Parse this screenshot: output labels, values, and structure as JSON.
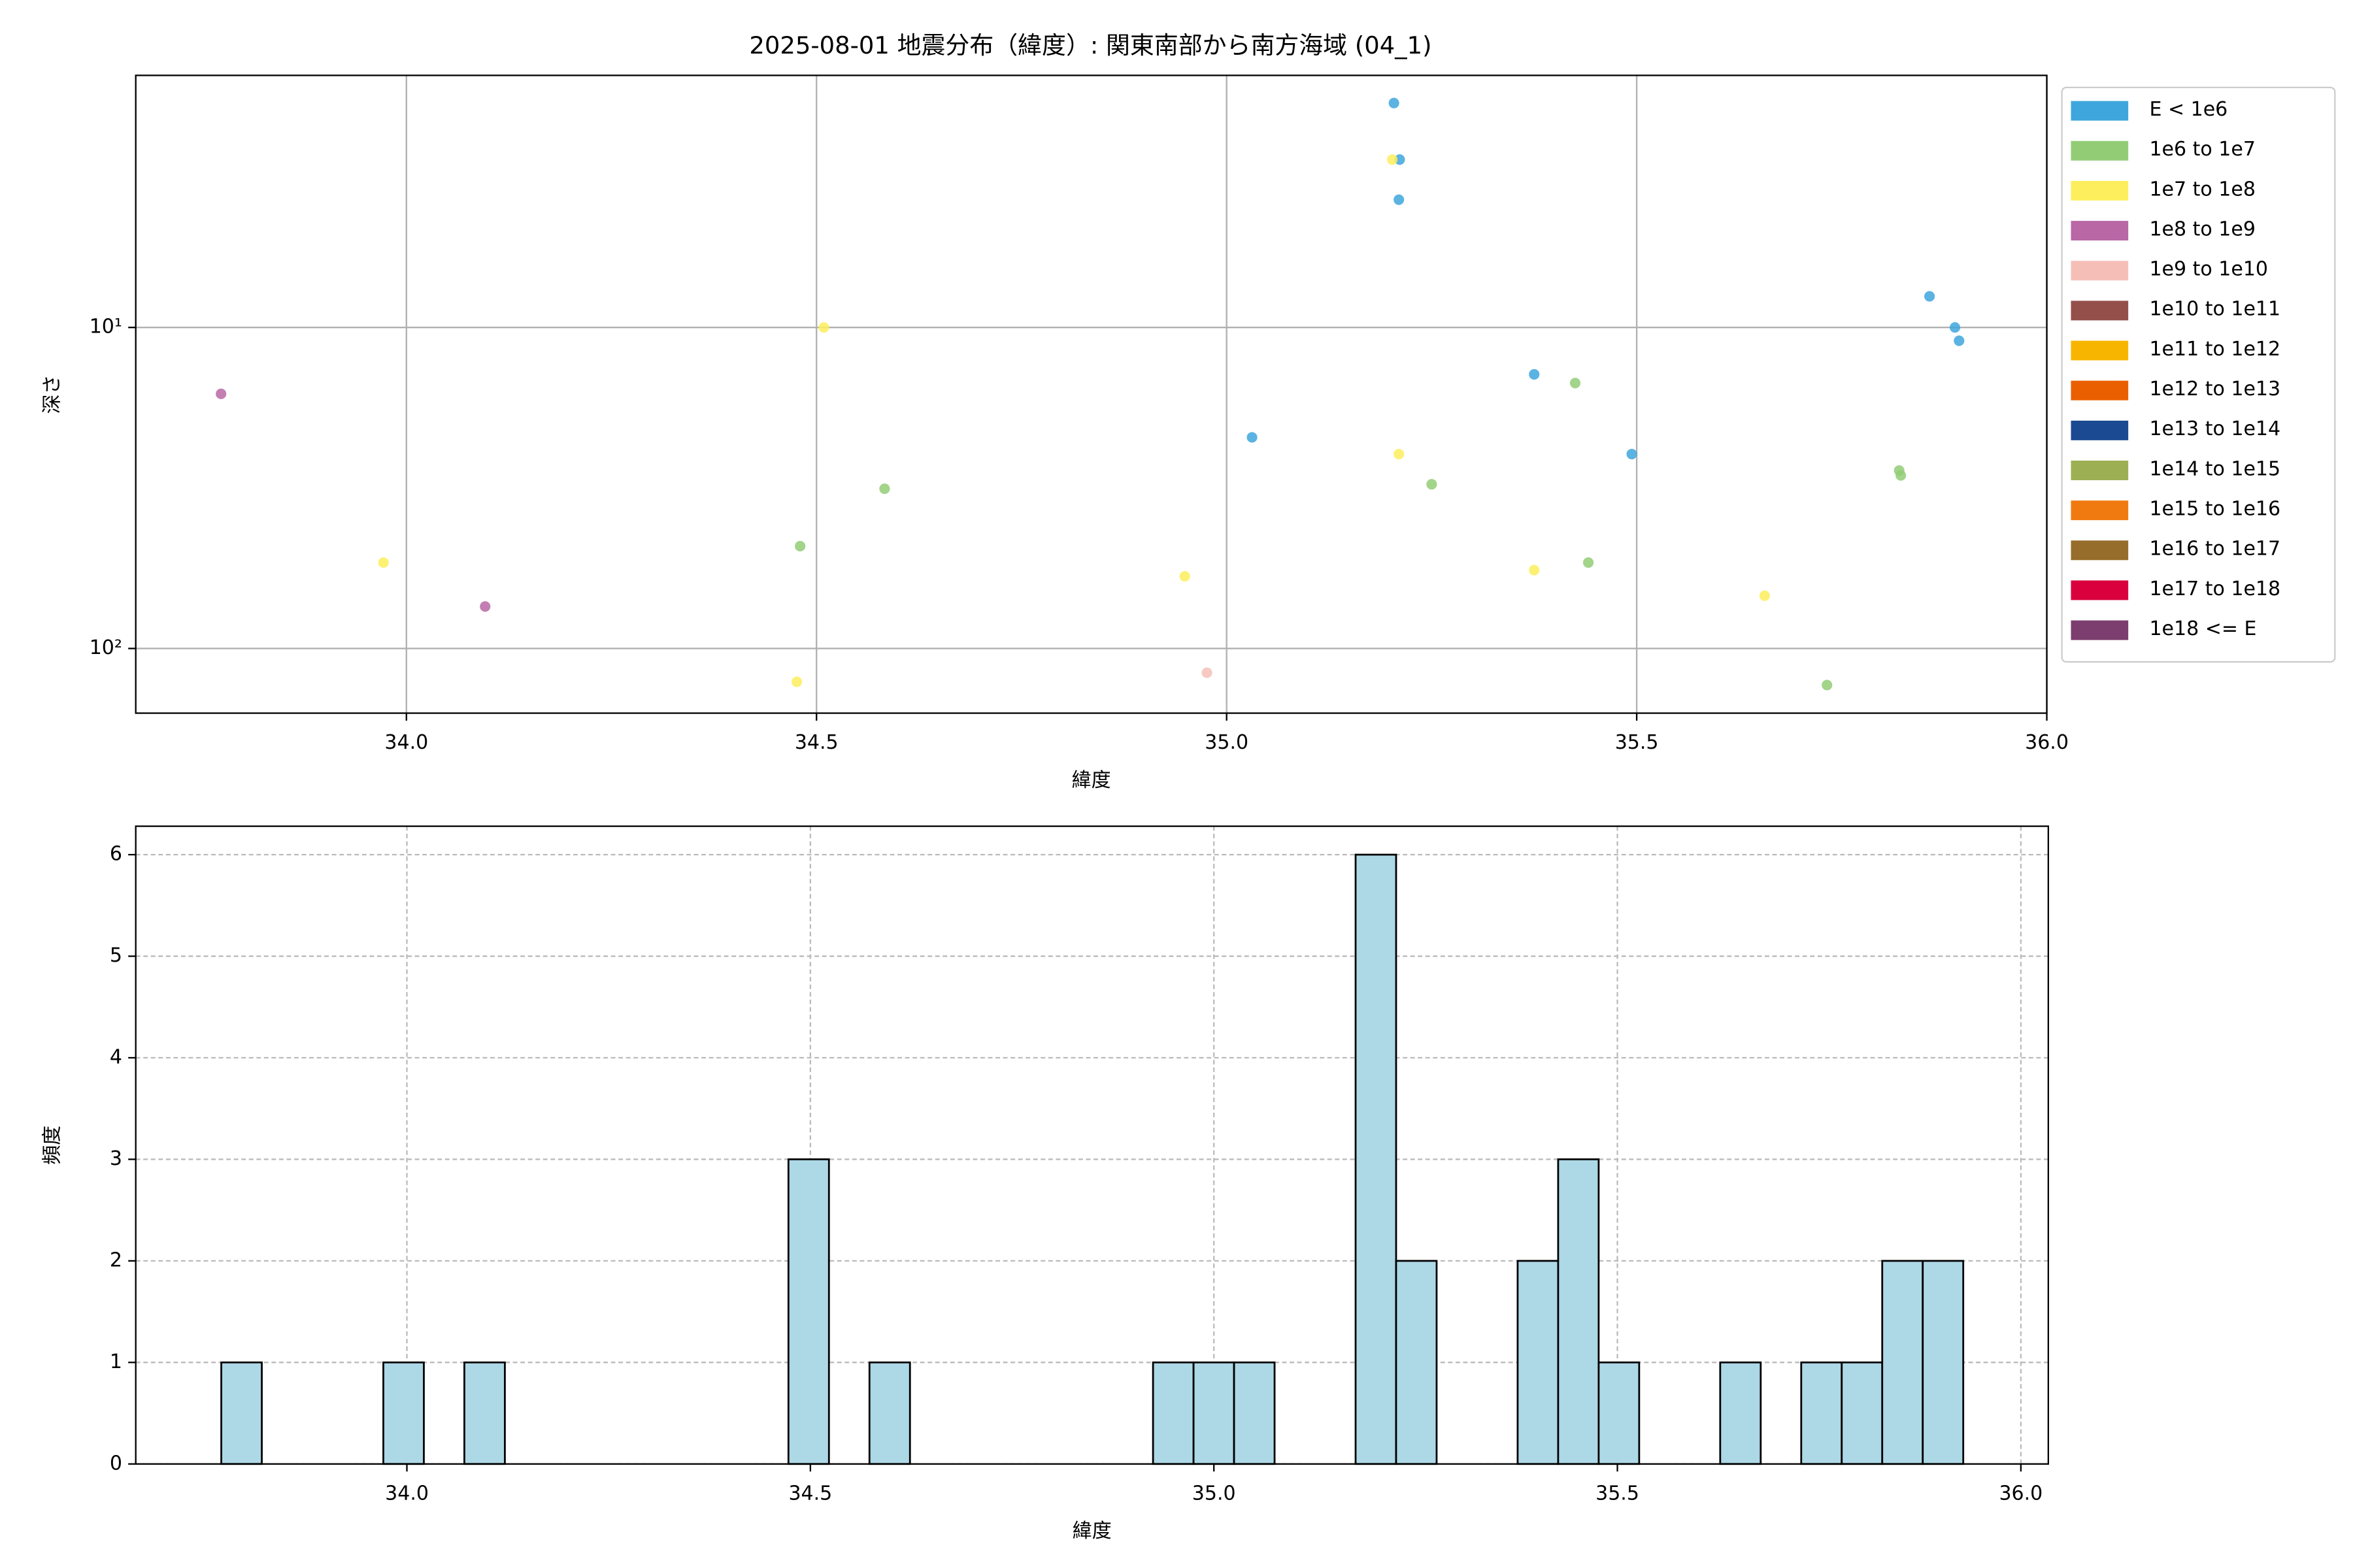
{
  "chart_data": [
    {
      "type": "scatter",
      "title": "2025-08-01 地震分布（緯度）: 関東南部から南方海域 (04_1)",
      "xlabel": "緯度",
      "ylabel": "深さ",
      "xlim": [
        33.67,
        36.0
      ],
      "ylim": [
        1.64,
        159
      ],
      "log_y": true,
      "y_inverted": true,
      "grid": true,
      "legend": "outside right",
      "xticks": [
        {
          "value": 34,
          "label": "34.0"
        },
        {
          "value": 34.5,
          "label": "34.5"
        },
        {
          "value": 35,
          "label": "35.0"
        },
        {
          "value": 35.5,
          "label": "35.5"
        },
        {
          "value": 36,
          "label": "36.0"
        }
      ],
      "yticks": [
        {
          "value": 10,
          "label": "10¹"
        },
        {
          "value": 100,
          "label": "10²"
        }
      ],
      "series": [
        {
          "name": "E < 1e6",
          "color": "#3ea6dd",
          "x": [
            35.031,
            35.204,
            35.211,
            35.21,
            35.375,
            35.494,
            35.857,
            35.888,
            35.893
          ],
          "values": [
            22,
            2.0,
            3.0,
            4.0,
            14.0,
            24.8,
            8.0,
            10,
            11.0
          ]
        },
        {
          "name": "1e6 to 1e7",
          "color": "#92cd76",
          "x": [
            34.48,
            34.583,
            35.25,
            35.425,
            35.441,
            35.732,
            35.82,
            35.822
          ],
          "values": [
            48,
            31.8,
            30.8,
            14.9,
            54,
            130,
            27.9,
            28.9
          ]
        },
        {
          "name": "1e7 to 1e8",
          "color": "#fdee5d",
          "x": [
            33.972,
            34.476,
            34.509,
            34.949,
            35.202,
            35.21,
            35.375,
            35.656
          ],
          "values": [
            54,
            127,
            10,
            59.6,
            3.0,
            24.8,
            57,
            68.5
          ]
        },
        {
          "name": "1e8 to 1e9",
          "color": "#b967a5",
          "x": [
            33.774,
            34.096
          ],
          "values": [
            16.1,
            74
          ]
        },
        {
          "name": "1e9 to 1e10",
          "color": "#f5bfb8",
          "x": [
            34.976
          ],
          "values": [
            119
          ]
        },
        {
          "name": "1e10 to 1e11",
          "color": "#954f4b",
          "x": [],
          "values": []
        },
        {
          "name": "1e11 to 1e12",
          "color": "#f8b500",
          "x": [],
          "values": []
        },
        {
          "name": "1e12 to 1e13",
          "color": "#ea6000",
          "x": [],
          "values": []
        },
        {
          "name": "1e13 to 1e14",
          "color": "#1c4a92",
          "x": [],
          "values": []
        },
        {
          "name": "1e14 to 1e15",
          "color": "#9daf53",
          "x": [],
          "values": []
        },
        {
          "name": "1e15 to 1e16",
          "color": "#f07a10",
          "x": [],
          "values": []
        },
        {
          "name": "1e16 to 1e17",
          "color": "#966d2a",
          "x": [],
          "values": []
        },
        {
          "name": "1e17 to 1e18",
          "color": "#d9003d",
          "x": [],
          "values": []
        },
        {
          "name": "1e18 <= E",
          "color": "#7c3e6e",
          "x": [],
          "values": []
        }
      ]
    },
    {
      "type": "histogram",
      "xlabel": "緯度",
      "ylabel": "頻度",
      "xlim": [
        33.664,
        36.034
      ],
      "ylim": [
        0,
        6.28
      ],
      "grid": true,
      "grid_style": "dashed",
      "color": "#add8e6",
      "edgecolor": "#000000",
      "xticks": [
        {
          "value": 34,
          "label": "34.0"
        },
        {
          "value": 34.5,
          "label": "34.5"
        },
        {
          "value": 35,
          "label": "35.0"
        },
        {
          "value": 35.5,
          "label": "35.5"
        },
        {
          "value": 36,
          "label": "36.0"
        }
      ],
      "yticks": [
        0,
        1,
        2,
        3,
        4,
        5,
        6
      ],
      "bins": [
        33.77,
        33.8202,
        33.8704,
        33.9206,
        33.9708,
        34.021,
        34.0712,
        34.1214,
        34.1716,
        34.2218,
        34.272,
        34.3222,
        34.3724,
        34.4226,
        34.4728,
        34.523,
        34.5732,
        34.6234,
        34.6736,
        34.7238,
        34.774,
        34.8242,
        34.8744,
        34.9246,
        34.9748,
        35.025,
        35.0752,
        35.1254,
        35.1756,
        35.2258,
        35.276,
        35.3262,
        35.3764,
        35.4266,
        35.4768,
        35.527,
        35.5772,
        35.6274,
        35.6776,
        35.7278,
        35.778,
        35.8282,
        35.8784,
        35.9286
      ],
      "values": [
        1,
        0,
        0,
        0,
        1,
        0,
        1,
        0,
        0,
        0,
        0,
        0,
        0,
        0,
        3,
        0,
        1,
        0,
        0,
        0,
        0,
        0,
        0,
        1,
        1,
        1,
        0,
        0,
        6,
        2,
        0,
        0,
        2,
        3,
        1,
        0,
        0,
        1,
        0,
        1,
        1,
        2,
        2
      ]
    }
  ]
}
